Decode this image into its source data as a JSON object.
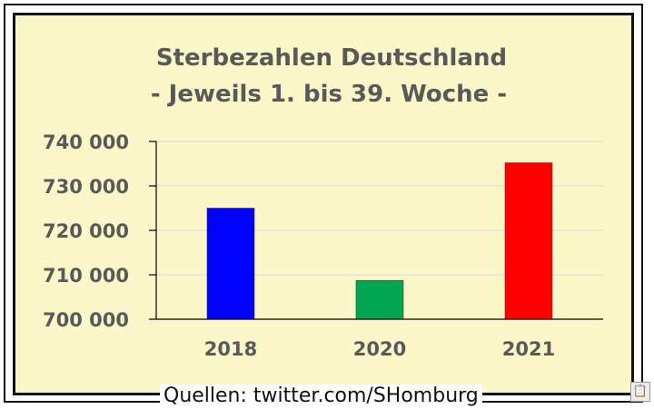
{
  "chart_data": {
    "type": "bar",
    "title": "Sterbezahlen Deutschland",
    "subtitle": "- Jeweils 1. bis 39. Woche -",
    "categories": [
      "2018",
      "2020",
      "2021"
    ],
    "values": [
      725000,
      708700,
      735200
    ],
    "colors": [
      "#0000ff",
      "#00a651",
      "#ff0000"
    ],
    "ylim": [
      700000,
      740000
    ],
    "yticks": [
      700000,
      710000,
      720000,
      730000,
      740000
    ],
    "ytick_labels": [
      "700 000",
      "710 000",
      "720 000",
      "730 000",
      "740 000"
    ],
    "grid": true,
    "legend": "none",
    "xlabel": "",
    "ylabel": ""
  },
  "source_label": "Quellen: twitter.com/SHomburg",
  "colors": {
    "background": "#fbf7c9",
    "title": "#595959",
    "axis": "#000000",
    "grid": "#d9d9d9"
  },
  "icons": {
    "corner_badge": "clipboard-icon"
  }
}
